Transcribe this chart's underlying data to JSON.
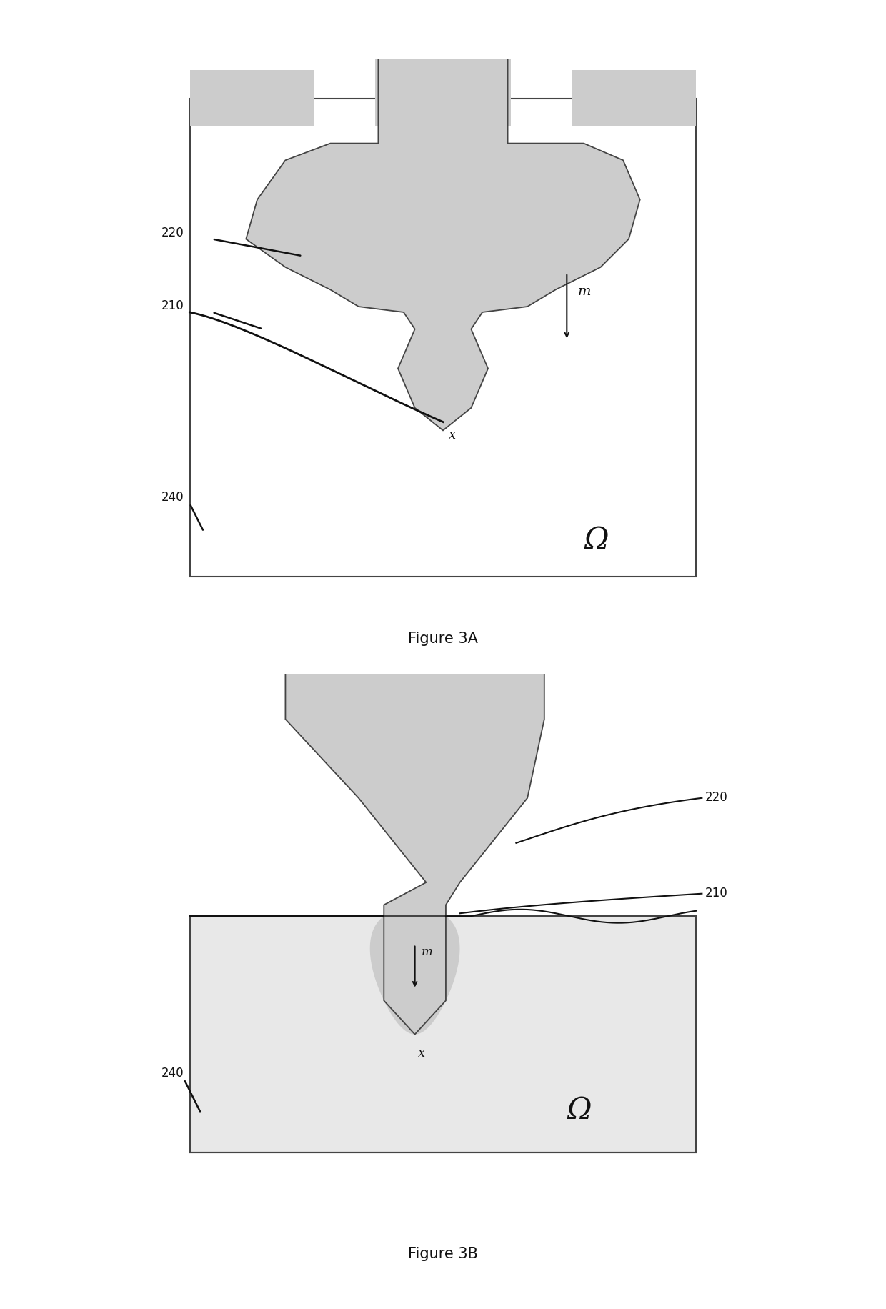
{
  "fig_width": 12.4,
  "fig_height": 18.32,
  "bg_color": "#ffffff",
  "tool_fill": "#cccccc",
  "tool_edge": "#444444",
  "workpiece_fill": "#d0d0d0",
  "workpiece_edge": "#444444",
  "domain_fill": "#e8e8e8",
  "label_color": "#111111",
  "arrow_color": "#111111",
  "figure_label_3A": "Figure 3A",
  "figure_label_3B": "Figure 3B",
  "label_220": "220",
  "label_210": "210",
  "label_240": "240",
  "label_m": "m",
  "label_x": "x",
  "label_omega": "Ω"
}
